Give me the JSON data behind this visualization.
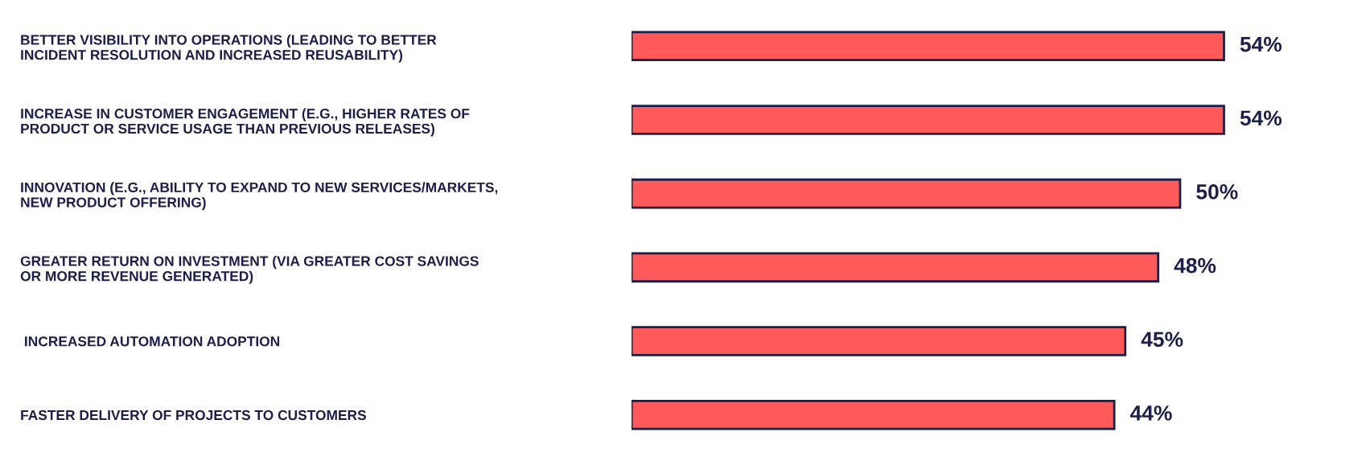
{
  "chart_data": {
    "type": "bar",
    "orientation": "horizontal",
    "categories": [
      "BETTER VISIBILITY INTO OPERATIONS (LEADING TO BETTER\nINCIDENT RESOLUTION AND INCREASED REUSABILITY)",
      "INCREASE IN CUSTOMER ENGAGEMENT (E.G., HIGHER RATES OF\nPRODUCT OR SERVICE USAGE THAN PREVIOUS RELEASES)",
      "INNOVATION (E.G., ABILITY TO EXPAND TO NEW SERVICES/MARKETS,\nNEW PRODUCT OFFERING)",
      "GREATER RETURN ON INVESTMENT (VIA GREATER COST SAVINGS\nOR MORE REVENUE GENERATED)",
      " INCREASED AUTOMATION ADOPTION",
      "FASTER DELIVERY OF PROJECTS TO CUSTOMERS"
    ],
    "values": [
      54,
      54,
      50,
      48,
      45,
      44
    ],
    "value_labels": [
      "54%",
      "54%",
      "50%",
      "48%",
      "45%",
      "44%"
    ],
    "color": "#ff5a5a",
    "tick_labels": "y",
    "grid": false,
    "legend": false
  }
}
